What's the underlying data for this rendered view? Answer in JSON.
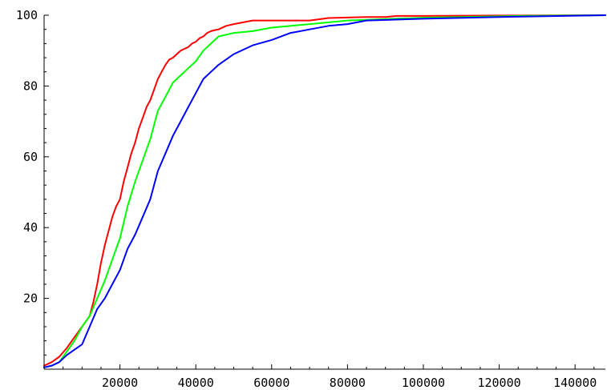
{
  "chart_data": {
    "type": "line",
    "title": "",
    "xlabel": "",
    "ylabel": "",
    "xlim": [
      0,
      148000
    ],
    "ylim": [
      0,
      100
    ],
    "x_ticks": [
      20000,
      40000,
      60000,
      80000,
      100000,
      120000,
      140000
    ],
    "y_ticks": [
      20,
      40,
      60,
      80,
      100
    ],
    "x_tick_labels": [
      "20000",
      "40000",
      "60000",
      "80000",
      "100000",
      "120000",
      "140000"
    ],
    "y_tick_labels": [
      "20",
      "40",
      "60",
      "80",
      "100"
    ],
    "grid": false,
    "legend": "none",
    "series": [
      {
        "color": "#ff0000",
        "x": [
          0,
          2000,
          4000,
          6000,
          8000,
          10000,
          12000,
          13000,
          14000,
          15000,
          16000,
          17000,
          18000,
          19000,
          20000,
          21000,
          22000,
          23000,
          24000,
          25000,
          26000,
          27000,
          28000,
          29000,
          30000,
          31000,
          32000,
          33000,
          34000,
          35000,
          36000,
          37000,
          38000,
          39000,
          40000,
          41000,
          42000,
          43000,
          44000,
          45000,
          46000,
          48000,
          50000,
          55000,
          60000,
          70000,
          75000,
          85000,
          90000,
          93000,
          100000,
          120000,
          148000
        ],
        "y": [
          1,
          2,
          3.5,
          6,
          9,
          12,
          15,
          19,
          24,
          30,
          35,
          39,
          43,
          46,
          48,
          53,
          57,
          61,
          64,
          68,
          71,
          74,
          76,
          79,
          82,
          84,
          86,
          87.5,
          88,
          89,
          90,
          90.5,
          91,
          92,
          92.5,
          93.5,
          94,
          95,
          95.5,
          95.8,
          96,
          97,
          97.5,
          98.5,
          98.5,
          98.5,
          99.2,
          99.5,
          99.5,
          99.8,
          99.8,
          99.9,
          100
        ]
      },
      {
        "color": "#00ff00",
        "x": [
          0,
          2000,
          4000,
          6000,
          8000,
          10000,
          12000,
          14000,
          16000,
          18000,
          20000,
          22000,
          24000,
          26000,
          28000,
          30000,
          32000,
          34000,
          36000,
          38000,
          40000,
          42000,
          44000,
          46000,
          48000,
          50000,
          55000,
          60000,
          70000,
          80000,
          100000,
          125000,
          148000
        ],
        "y": [
          0.5,
          1,
          2,
          5,
          8,
          12,
          15,
          20,
          25,
          31,
          37,
          46,
          53,
          59,
          65,
          73,
          77,
          81,
          83,
          85,
          87,
          90,
          92,
          94,
          94.5,
          95,
          95.5,
          96.5,
          97.5,
          98.5,
          99.3,
          99.8,
          100
        ]
      },
      {
        "color": "#0000ff",
        "x": [
          0,
          2000,
          4000,
          6000,
          8000,
          10000,
          12000,
          14000,
          16000,
          18000,
          20000,
          22000,
          24000,
          26000,
          28000,
          30000,
          32000,
          34000,
          36000,
          38000,
          40000,
          42000,
          44000,
          46000,
          48000,
          50000,
          55000,
          60000,
          65000,
          70000,
          75000,
          80000,
          85000,
          100000,
          120000,
          148000
        ],
        "y": [
          0.5,
          1,
          2,
          4,
          5.5,
          7,
          12,
          17,
          20,
          24,
          28,
          34,
          38,
          43,
          48,
          56,
          61,
          66,
          70,
          74,
          78,
          82,
          84,
          86,
          87.5,
          89,
          91.5,
          93,
          95,
          96,
          97,
          97.5,
          98.5,
          99,
          99.5,
          100
        ]
      }
    ]
  }
}
